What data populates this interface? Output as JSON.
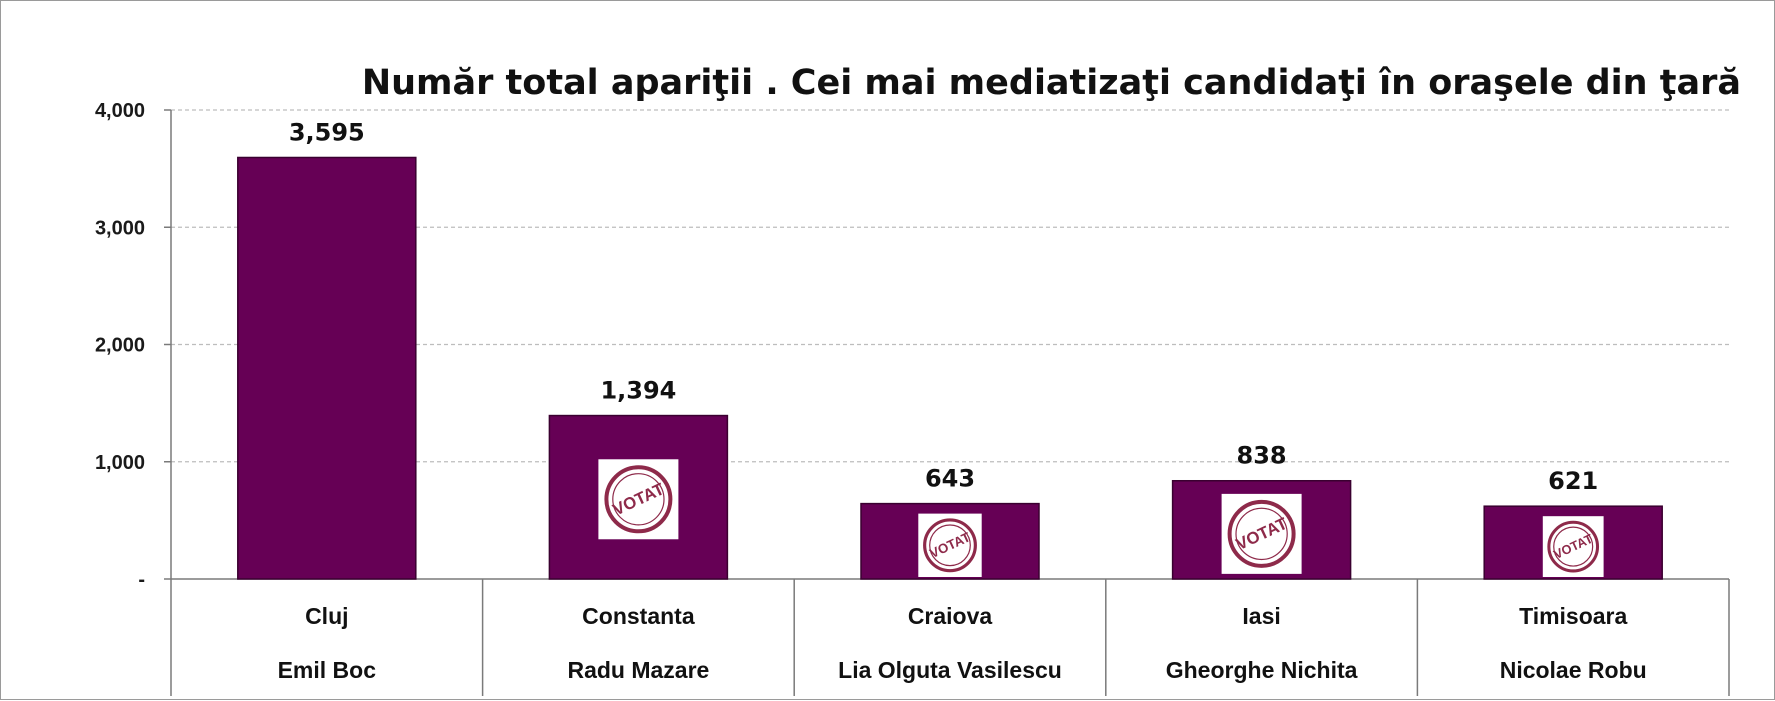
{
  "chart_data": {
    "type": "bar",
    "title": "Număr total apariţii . Cei mai mediatizaţi candidaţi în oraşele din ţară",
    "categories": [
      "Cluj",
      "Constanta",
      "Craiova",
      "Iasi",
      "Timisoara"
    ],
    "candidates": [
      "Emil Boc",
      "Radu Mazare",
      "Lia Olguta Vasilescu",
      "Gheorghe Nichita",
      "Nicolae Robu"
    ],
    "values": [
      3595,
      1394,
      643,
      838,
      621
    ],
    "value_labels": [
      "3,595",
      "1,394",
      "643",
      "838",
      "621"
    ],
    "voted_stamp": [
      false,
      true,
      true,
      true,
      true
    ],
    "stamp_text": "VOTAT",
    "ylim": [
      0,
      4000
    ],
    "yticks": [
      0,
      1000,
      2000,
      3000,
      4000
    ],
    "ytick_labels": [
      "-",
      "1,000",
      "2,000",
      "3,000",
      "4,000"
    ],
    "xlabel": "",
    "ylabel": "",
    "grid": true,
    "legend": "none",
    "colors": {
      "bar": "#660055",
      "bar_edge": "#3a0030",
      "grid": "#bdbdbd",
      "stamp": "#8e2a4a"
    }
  }
}
